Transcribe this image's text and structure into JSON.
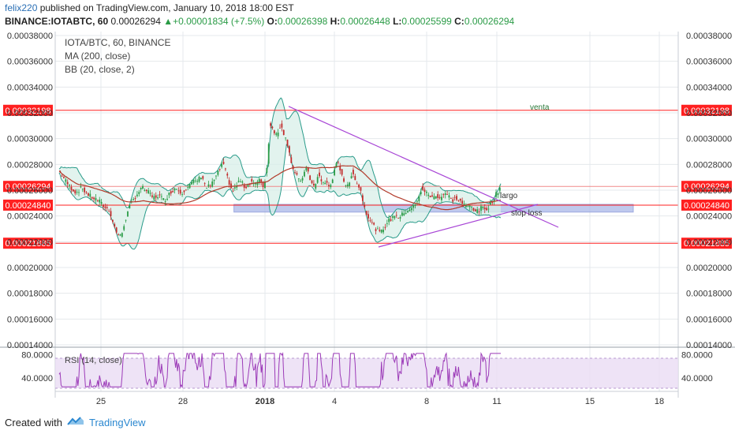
{
  "header": {
    "author": "felix220",
    "published_text": " published on TradingView.com, January 10, 2018 18:00 EST",
    "symbol": "BINANCE:IOTABTC, 60",
    "last": "0.00026294",
    "arrow": "▲",
    "change": "+0.00001834 (+7.5%)",
    "o_label": "O:",
    "o_val": "0.00026398",
    "h_label": "H:",
    "h_val": "0.00026448",
    "l_label": "L:",
    "l_val": "0.00025599",
    "c_label": "C:",
    "c_val": "0.00026294"
  },
  "legend": {
    "line1": "IOTA/BTC, 60, BINANCE",
    "line2": "MA (200, close)",
    "line3": "BB (20, close, 2)",
    "rsi": "RSI (14, close)"
  },
  "annotations": {
    "venta": "venta",
    "largo": "largo",
    "stop_loss": "stop loss"
  },
  "footer": {
    "created_with": "Created with",
    "brand": "TradingView"
  },
  "colors": {
    "up": "#2a9b46",
    "down": "#c22a2a",
    "level": "#ff2020",
    "ma": "#b23a2a",
    "bb": "#2a9b8a",
    "bb_fill": "#d8efe8",
    "trend": "#a846d6",
    "zone": "#aab7e8",
    "rsi": "#9c3bb8",
    "rsi_fill": "#eadcf4",
    "grid": "#e4e8ec"
  },
  "chart_data": {
    "type": "candlestick",
    "price_axis": {
      "ticks": [
        "0.00038000",
        "0.00036000",
        "0.00034000",
        "0.00032000",
        "0.00030000",
        "0.00028000",
        "0.00026000",
        "0.00024000",
        "0.00022000",
        "0.00020000",
        "0.00018000",
        "0.00016000",
        "0.00014000"
      ],
      "range": [
        0.00014,
        0.00038
      ]
    },
    "rsi_axis": {
      "ticks": [
        "80.0000",
        "40.0000"
      ],
      "range": [
        20,
        90
      ],
      "bands": [
        70,
        30
      ]
    },
    "time_axis": {
      "labels": [
        "25",
        "28",
        "2018",
        "4",
        "8",
        "11",
        "15",
        "18"
      ],
      "bold": [
        "2018"
      ]
    },
    "horizontal_levels": [
      {
        "price": 0.00032198,
        "label": "0.00032198"
      },
      {
        "price": 0.0002484,
        "label": "0.00024840"
      },
      {
        "price": 0.00021885,
        "label": "0.00021885"
      }
    ],
    "last_price": {
      "price": 0.00026294,
      "label": "0.00026294"
    },
    "close_path": [
      [
        0,
        0.000275
      ],
      [
        6,
        0.000268
      ],
      [
        12,
        0.000262
      ],
      [
        18,
        0.000258
      ],
      [
        24,
        0.000262
      ],
      [
        30,
        0.000257
      ],
      [
        36,
        0.000254
      ],
      [
        42,
        0.000252
      ],
      [
        48,
        0.000247
      ],
      [
        54,
        0.000244
      ],
      [
        58,
        0.000233
      ],
      [
        62,
        0.000226
      ],
      [
        66,
        0.000224
      ],
      [
        70,
        0.000236
      ],
      [
        76,
        0.000249
      ],
      [
        82,
        0.000256
      ],
      [
        88,
        0.000262
      ],
      [
        94,
        0.000259
      ],
      [
        100,
        0.000254
      ],
      [
        106,
        0.000256
      ],
      [
        112,
        0.000252
      ],
      [
        118,
        0.000258
      ],
      [
        124,
        0.000262
      ],
      [
        130,
        0.000258
      ],
      [
        136,
        0.000262
      ],
      [
        142,
        0.000266
      ],
      [
        148,
        0.000268
      ],
      [
        152,
        0.000272
      ],
      [
        156,
        0.000262
      ],
      [
        162,
        0.000264
      ],
      [
        168,
        0.000272
      ],
      [
        174,
        0.000281
      ],
      [
        180,
        0.000268
      ],
      [
        184,
        0.000259
      ],
      [
        188,
        0.000262
      ],
      [
        192,
        0.000268
      ],
      [
        198,
        0.000262
      ],
      [
        204,
        0.000267
      ],
      [
        210,
        0.000265
      ],
      [
        214,
        0.000268
      ],
      [
        218,
        0.000262
      ],
      [
        222,
        0.000282
      ],
      [
        224,
        0.000312
      ],
      [
        228,
        0.000307
      ],
      [
        232,
        0.000302
      ],
      [
        236,
        0.000312
      ],
      [
        240,
        0.000302
      ],
      [
        244,
        0.000294
      ],
      [
        248,
        0.000278
      ],
      [
        252,
        0.000272
      ],
      [
        256,
        0.000266
      ],
      [
        260,
        0.000272
      ],
      [
        264,
        0.000278
      ],
      [
        268,
        0.000266
      ],
      [
        272,
        0.000262
      ],
      [
        276,
        0.000272
      ],
      [
        280,
        0.000266
      ],
      [
        284,
        0.000266
      ],
      [
        288,
        0.000262
      ],
      [
        292,
        0.000272
      ],
      [
        296,
        0.000282
      ],
      [
        300,
        0.000275
      ],
      [
        304,
        0.000265
      ],
      [
        308,
        0.000262
      ],
      [
        312,
        0.000276
      ],
      [
        316,
        0.000266
      ],
      [
        320,
        0.000262
      ],
      [
        326,
        0.000244
      ],
      [
        330,
        0.000238
      ],
      [
        334,
        0.000233
      ],
      [
        338,
        0.000229
      ],
      [
        342,
        0.000227
      ],
      [
        346,
        0.000231
      ],
      [
        350,
        0.000236
      ],
      [
        354,
        0.000238
      ],
      [
        358,
        0.000242
      ],
      [
        362,
        0.000238
      ],
      [
        366,
        0.000242
      ],
      [
        370,
        0.000244
      ],
      [
        374,
        0.000246
      ],
      [
        378,
        0.000248
      ],
      [
        382,
        0.000252
      ],
      [
        386,
        0.000262
      ],
      [
        390,
        0.000258
      ],
      [
        394,
        0.000256
      ],
      [
        398,
        0.000254
      ],
      [
        402,
        0.000256
      ],
      [
        406,
        0.000254
      ],
      [
        410,
        0.000258
      ],
      [
        414,
        0.000256
      ],
      [
        418,
        0.000252
      ],
      [
        422,
        0.000254
      ],
      [
        426,
        0.000252
      ],
      [
        430,
        0.000249
      ],
      [
        434,
        0.000247
      ],
      [
        438,
        0.000248
      ],
      [
        442,
        0.000245
      ],
      [
        446,
        0.000243
      ],
      [
        450,
        0.000247
      ],
      [
        454,
        0.000245
      ],
      [
        458,
        0.000248
      ],
      [
        462,
        0.000253
      ],
      [
        466,
        0.000258
      ],
      [
        470,
        0.000263
      ]
    ],
    "trendlines": [
      {
        "from": [
          0,
          0.000325
        ],
        "to": [
          336,
          0.000227
        ]
      },
      {
        "from": [
          118,
          0.000224
        ],
        "to": [
          336,
          0.000247
        ]
      }
    ],
    "zone": {
      "from_x": 186,
      "to_x": 460,
      "price_top": 0.000249,
      "price_bottom": 0.000243
    }
  }
}
